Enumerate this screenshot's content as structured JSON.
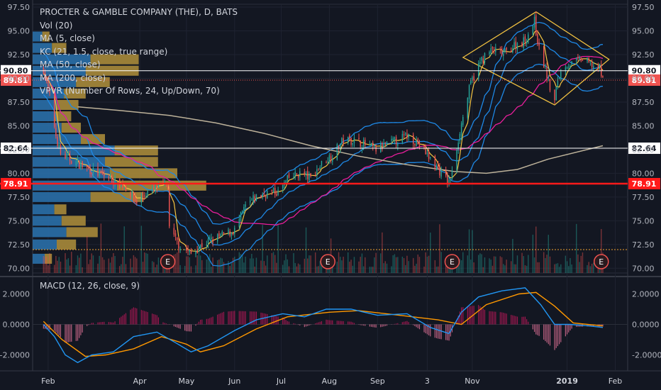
{
  "header": {
    "title": "PROCTER & GAMBLE COMPANY (THE), D, BATS",
    "indicators": [
      "Vol (20)",
      "MA (5, close)",
      "KC (21, 1.5, close, true range)",
      "MA (50, close)",
      "MA (200, close)",
      "VPVR (Number Of Rows, 24, Up/Down, 70)"
    ],
    "macd_label": "MACD (12, 26, close, 9)"
  },
  "colors": {
    "background": "#131722",
    "up": "#26a69a",
    "down": "#ef5350",
    "ma5": "#f5c542",
    "keltner": "#1e88e5",
    "ma50": "#e91e9b",
    "ma200": "#bdb29a",
    "vpvr_up": "#2a6fa8",
    "vpvr_down": "#a8893a",
    "macd_line": "#2196f3",
    "signal_line": "#ff9800",
    "pattern": "#f0c040"
  },
  "chart_data": [
    {
      "type": "candlestick",
      "title": "PROCTER & GAMBLE COMPANY (THE), D, BATS",
      "ylim": [
        69.5,
        97.8
      ],
      "y_ticks": [
        "97.50",
        "95.00",
        "92.50",
        "90.00",
        "87.50",
        "85.00",
        "82.50",
        "80.00",
        "77.50",
        "75.00",
        "72.50",
        "70.00"
      ],
      "x_ticks": [
        "Feb",
        "Apr",
        "May",
        "Jun",
        "Jul",
        "Aug",
        "Sep",
        "3",
        "Nov",
        "2019",
        "Feb"
      ],
      "close_path": [
        {
          "x": "2018-01-29",
          "y": 91.0
        },
        {
          "x": "2018-02-02",
          "y": 88.0
        },
        {
          "x": "2018-02-06",
          "y": 84.0
        },
        {
          "x": "2018-02-09",
          "y": 82.0
        },
        {
          "x": "2018-02-15",
          "y": 81.5
        },
        {
          "x": "2018-02-26",
          "y": 80.5
        },
        {
          "x": "2018-03-12",
          "y": 79.5
        },
        {
          "x": "2018-03-23",
          "y": 78.5
        },
        {
          "x": "2018-03-30",
          "y": 77.0
        },
        {
          "x": "2018-04-06",
          "y": 78.0
        },
        {
          "x": "2018-04-13",
          "y": 78.6
        },
        {
          "x": "2018-04-19",
          "y": 78.8
        },
        {
          "x": "2018-04-20",
          "y": 74.0
        },
        {
          "x": "2018-04-26",
          "y": 72.5
        },
        {
          "x": "2018-05-04",
          "y": 71.5
        },
        {
          "x": "2018-05-11",
          "y": 72.5
        },
        {
          "x": "2018-05-18",
          "y": 73.0
        },
        {
          "x": "2018-05-25",
          "y": 73.5
        },
        {
          "x": "2018-06-01",
          "y": 74.0
        },
        {
          "x": "2018-06-08",
          "y": 76.5
        },
        {
          "x": "2018-06-15",
          "y": 77.5
        },
        {
          "x": "2018-06-22",
          "y": 78.0
        },
        {
          "x": "2018-06-29",
          "y": 78.0
        },
        {
          "x": "2018-07-06",
          "y": 79.5
        },
        {
          "x": "2018-07-13",
          "y": 80.0
        },
        {
          "x": "2018-07-20",
          "y": 79.5
        },
        {
          "x": "2018-07-27",
          "y": 81.0
        },
        {
          "x": "2018-08-03",
          "y": 82.0
        },
        {
          "x": "2018-08-10",
          "y": 83.5
        },
        {
          "x": "2018-08-17",
          "y": 83.5
        },
        {
          "x": "2018-08-24",
          "y": 83.0
        },
        {
          "x": "2018-08-31",
          "y": 82.5
        },
        {
          "x": "2018-09-07",
          "y": 83.0
        },
        {
          "x": "2018-09-14",
          "y": 83.5
        },
        {
          "x": "2018-09-21",
          "y": 84.0
        },
        {
          "x": "2018-09-28",
          "y": 83.0
        },
        {
          "x": "2018-10-05",
          "y": 81.5
        },
        {
          "x": "2018-10-12",
          "y": 80.0
        },
        {
          "x": "2018-10-17",
          "y": 79.0
        },
        {
          "x": "2018-10-19",
          "y": 80.0
        },
        {
          "x": "2018-10-24",
          "y": 84.5
        },
        {
          "x": "2018-10-31",
          "y": 89.5
        },
        {
          "x": "2018-11-07",
          "y": 92.0
        },
        {
          "x": "2018-11-14",
          "y": 93.0
        },
        {
          "x": "2018-11-21",
          "y": 92.5
        },
        {
          "x": "2018-11-28",
          "y": 93.5
        },
        {
          "x": "2018-12-05",
          "y": 94.0
        },
        {
          "x": "2018-12-11",
          "y": 96.0
        },
        {
          "x": "2018-12-14",
          "y": 93.0
        },
        {
          "x": "2018-12-18",
          "y": 91.0
        },
        {
          "x": "2018-12-21",
          "y": 89.0
        },
        {
          "x": "2018-12-24",
          "y": 87.5
        },
        {
          "x": "2018-12-26",
          "y": 90.0
        },
        {
          "x": "2018-12-31",
          "y": 91.5
        },
        {
          "x": "2019-01-04",
          "y": 91.5
        },
        {
          "x": "2019-01-10",
          "y": 92.0
        },
        {
          "x": "2019-01-16",
          "y": 91.5
        },
        {
          "x": "2019-01-22",
          "y": 91.0
        },
        {
          "x": "2019-01-24",
          "y": 89.81
        }
      ],
      "ma200_path": [
        {
          "x": "2018-02-20",
          "y": 87.0
        },
        {
          "x": "2018-03-20",
          "y": 86.6
        },
        {
          "x": "2018-04-20",
          "y": 86.1
        },
        {
          "x": "2018-05-20",
          "y": 85.3
        },
        {
          "x": "2018-06-20",
          "y": 84.2
        },
        {
          "x": "2018-07-20",
          "y": 82.9
        },
        {
          "x": "2018-08-20",
          "y": 81.8
        },
        {
          "x": "2018-09-20",
          "y": 80.9
        },
        {
          "x": "2018-10-20",
          "y": 80.2
        },
        {
          "x": "2018-11-10",
          "y": 80.0
        },
        {
          "x": "2018-11-30",
          "y": 80.4
        },
        {
          "x": "2018-12-20",
          "y": 81.5
        },
        {
          "x": "2019-01-24",
          "y": 82.9
        }
      ],
      "vpvr": [
        {
          "price": 71.0,
          "up": 5,
          "down": 3
        },
        {
          "price": 72.5,
          "up": 10,
          "down": 8
        },
        {
          "price": 73.8,
          "up": 14,
          "down": 13
        },
        {
          "price": 75.0,
          "up": 12,
          "down": 10
        },
        {
          "price": 76.2,
          "up": 9,
          "down": 5
        },
        {
          "price": 77.5,
          "up": 24,
          "down": 22
        },
        {
          "price": 78.7,
          "up": 35,
          "down": 37
        },
        {
          "price": 80.0,
          "up": 32,
          "down": 28
        },
        {
          "price": 81.2,
          "up": 30,
          "down": 22
        },
        {
          "price": 82.4,
          "up": 34,
          "down": 18
        },
        {
          "price": 83.6,
          "up": 20,
          "down": 10
        },
        {
          "price": 84.8,
          "up": 12,
          "down": 8
        },
        {
          "price": 86.0,
          "up": 9,
          "down": 7
        },
        {
          "price": 87.2,
          "up": 10,
          "down": 9
        },
        {
          "price": 88.4,
          "up": 13,
          "down": 9
        },
        {
          "price": 89.6,
          "up": 18,
          "down": 14
        },
        {
          "price": 90.8,
          "up": 22,
          "down": 22
        },
        {
          "price": 92.0,
          "up": 24,
          "down": 20
        },
        {
          "price": 93.2,
          "up": 8,
          "down": 6
        },
        {
          "price": 94.4,
          "up": 4,
          "down": 3
        }
      ],
      "price_levels": [
        {
          "label": "90.80",
          "value": 90.8,
          "style": "white-line"
        },
        {
          "label": "89.81",
          "value": 89.81,
          "style": "last-price"
        },
        {
          "label": "82.64",
          "value": 82.64,
          "style": "white-line"
        },
        {
          "label": "78.91",
          "value": 78.91,
          "style": "red-line"
        }
      ],
      "earnings_markers": [
        {
          "date": "2018-04-19",
          "label": "E"
        },
        {
          "date": "2018-07-31",
          "label": "E"
        },
        {
          "date": "2018-10-19",
          "label": "E"
        },
        {
          "date": "2019-01-23",
          "label": "E"
        }
      ],
      "pattern_diamond": [
        {
          "x": "2018-10-26",
          "y": 92.2
        },
        {
          "x": "2018-12-12",
          "y": 97.0
        },
        {
          "x": "2019-01-28",
          "y": 92.0
        },
        {
          "x": "2018-12-24",
          "y": 87.2
        }
      ]
    },
    {
      "type": "macd",
      "title": "MACD (12, 26, close, 9)",
      "ylim": [
        -3.0,
        3.0
      ],
      "y_ticks": [
        "2.0000",
        "0.0000",
        "-2.0000"
      ],
      "macd_series": [
        {
          "x": "2018-01-29",
          "y": 0.0
        },
        {
          "x": "2018-02-05",
          "y": -0.8
        },
        {
          "x": "2018-02-12",
          "y": -2.0
        },
        {
          "x": "2018-02-20",
          "y": -2.5
        },
        {
          "x": "2018-03-01",
          "y": -2.0
        },
        {
          "x": "2018-03-15",
          "y": -1.8
        },
        {
          "x": "2018-03-28",
          "y": -0.8
        },
        {
          "x": "2018-04-12",
          "y": -0.5
        },
        {
          "x": "2018-04-24",
          "y": -1.2
        },
        {
          "x": "2018-05-04",
          "y": -1.8
        },
        {
          "x": "2018-05-15",
          "y": -1.4
        },
        {
          "x": "2018-06-01",
          "y": -0.4
        },
        {
          "x": "2018-06-15",
          "y": 0.3
        },
        {
          "x": "2018-07-02",
          "y": 0.7
        },
        {
          "x": "2018-07-16",
          "y": 0.5
        },
        {
          "x": "2018-07-30",
          "y": 1.0
        },
        {
          "x": "2018-08-15",
          "y": 1.0
        },
        {
          "x": "2018-09-01",
          "y": 0.6
        },
        {
          "x": "2018-09-20",
          "y": 0.7
        },
        {
          "x": "2018-10-05",
          "y": -0.2
        },
        {
          "x": "2018-10-17",
          "y": -0.6
        },
        {
          "x": "2018-10-25",
          "y": 0.8
        },
        {
          "x": "2018-11-05",
          "y": 1.8
        },
        {
          "x": "2018-11-20",
          "y": 2.2
        },
        {
          "x": "2018-12-05",
          "y": 2.4
        },
        {
          "x": "2018-12-15",
          "y": 1.3
        },
        {
          "x": "2018-12-24",
          "y": 0.0
        },
        {
          "x": "2019-01-03",
          "y": 0.0
        },
        {
          "x": "2019-01-15",
          "y": -0.1
        },
        {
          "x": "2019-01-24",
          "y": -0.2
        }
      ],
      "signal_series": [
        {
          "x": "2018-01-29",
          "y": 0.2
        },
        {
          "x": "2018-02-10",
          "y": -1.0
        },
        {
          "x": "2018-02-25",
          "y": -2.1
        },
        {
          "x": "2018-03-10",
          "y": -2.0
        },
        {
          "x": "2018-03-28",
          "y": -1.6
        },
        {
          "x": "2018-04-15",
          "y": -0.8
        },
        {
          "x": "2018-05-01",
          "y": -1.3
        },
        {
          "x": "2018-05-10",
          "y": -1.8
        },
        {
          "x": "2018-05-25",
          "y": -1.4
        },
        {
          "x": "2018-06-15",
          "y": -0.3
        },
        {
          "x": "2018-07-05",
          "y": 0.5
        },
        {
          "x": "2018-08-01",
          "y": 0.8
        },
        {
          "x": "2018-08-20",
          "y": 0.9
        },
        {
          "x": "2018-09-15",
          "y": 0.6
        },
        {
          "x": "2018-10-10",
          "y": 0.3
        },
        {
          "x": "2018-10-25",
          "y": 0.0
        },
        {
          "x": "2018-11-10",
          "y": 1.3
        },
        {
          "x": "2018-12-01",
          "y": 2.0
        },
        {
          "x": "2018-12-12",
          "y": 2.1
        },
        {
          "x": "2018-12-24",
          "y": 1.2
        },
        {
          "x": "2019-01-05",
          "y": 0.1
        },
        {
          "x": "2019-01-24",
          "y": -0.1
        }
      ]
    }
  ]
}
